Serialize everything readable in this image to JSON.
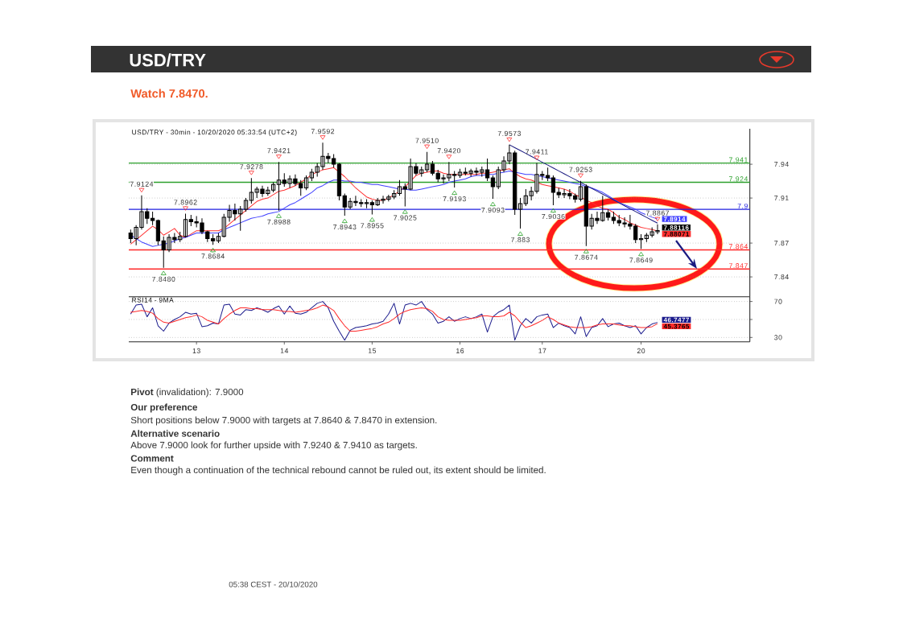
{
  "chart_data": [
    {
      "type": "candlestick",
      "title": "USD/TRY",
      "subtitle": "Watch 7.8470.",
      "color": "#000000",
      "categories": [
        null,
        null,
        null,
        null,
        null,
        null,
        null,
        null,
        null,
        null,
        null,
        null,
        null,
        null,
        null,
        null,
        null,
        null,
        null,
        null,
        null,
        null,
        null,
        null,
        null,
        null,
        null,
        null,
        null,
        null,
        null,
        null,
        null,
        null,
        null,
        null,
        null,
        null,
        null,
        null,
        null,
        null,
        null,
        null,
        null,
        null,
        null,
        null,
        null,
        null,
        null,
        null,
        null,
        null,
        null,
        null,
        null,
        null,
        null,
        null,
        null,
        null,
        null,
        null,
        null,
        null,
        null,
        null,
        null,
        null,
        null,
        null,
        null,
        null,
        null,
        null,
        null,
        null,
        null,
        null,
        null,
        null,
        null,
        null,
        null,
        null,
        null,
        null,
        null,
        null,
        null,
        null,
        null,
        null,
        null,
        null,
        null,
        null,
        null,
        null,
        null,
        null,
        null,
        null,
        null,
        null,
        null,
        null,
        null,
        null,
        null,
        null,
        null
      ],
      "ohlc": [
        [
          7.879,
          7.882,
          7.87,
          7.874
        ],
        [
          7.874,
          7.886,
          7.868,
          7.884
        ],
        [
          7.884,
          7.9124,
          7.882,
          7.898
        ],
        [
          7.898,
          7.901,
          7.887,
          7.892
        ],
        [
          7.892,
          7.898,
          7.886,
          7.89
        ],
        [
          7.89,
          7.891,
          7.868,
          7.872
        ],
        [
          7.872,
          7.876,
          7.848,
          7.864
        ],
        [
          7.864,
          7.878,
          7.862,
          7.875
        ],
        [
          7.875,
          7.879,
          7.87,
          7.873
        ],
        [
          7.873,
          7.88,
          7.871,
          7.876
        ],
        [
          7.876,
          7.8962,
          7.875,
          7.891
        ],
        [
          7.891,
          7.895,
          7.885,
          7.889
        ],
        [
          7.889,
          7.894,
          7.884,
          7.888
        ],
        [
          7.888,
          7.892,
          7.878,
          7.88
        ],
        [
          7.88,
          7.881,
          7.871,
          7.874
        ],
        [
          7.874,
          7.878,
          7.8684,
          7.872
        ],
        [
          7.872,
          7.879,
          7.87,
          7.876
        ],
        [
          7.876,
          7.896,
          7.875,
          7.893
        ],
        [
          7.893,
          7.904,
          7.889,
          7.899
        ],
        [
          7.899,
          7.905,
          7.89,
          7.896
        ],
        [
          7.896,
          7.903,
          7.881,
          7.9
        ],
        [
          7.9,
          7.91,
          7.898,
          7.908
        ],
        [
          7.908,
          7.9278,
          7.905,
          7.915
        ],
        [
          7.915,
          7.92,
          7.91,
          7.918
        ],
        [
          7.918,
          7.921,
          7.911,
          7.914
        ],
        [
          7.914,
          7.92,
          7.912,
          7.917
        ],
        [
          7.917,
          7.924,
          7.915,
          7.922
        ],
        [
          7.922,
          7.9421,
          7.8988,
          7.926
        ],
        [
          7.926,
          7.932,
          7.92,
          7.923
        ],
        [
          7.923,
          7.93,
          7.919,
          7.927
        ],
        [
          7.927,
          7.931,
          7.921,
          7.923
        ],
        [
          7.923,
          7.926,
          7.912,
          7.919
        ],
        [
          7.919,
          7.93,
          7.917,
          7.928
        ],
        [
          7.928,
          7.936,
          7.925,
          7.933
        ],
        [
          7.933,
          7.941,
          7.929,
          7.938
        ],
        [
          7.938,
          7.9592,
          7.935,
          7.947
        ],
        [
          7.947,
          7.95,
          7.941,
          7.945
        ],
        [
          7.945,
          7.949,
          7.937,
          7.94
        ],
        [
          7.94,
          7.941,
          7.908,
          7.912
        ],
        [
          7.912,
          7.914,
          7.8943,
          7.902
        ],
        [
          7.902,
          7.91,
          7.9,
          7.907
        ],
        [
          7.907,
          7.912,
          7.903,
          7.906
        ],
        [
          7.906,
          7.909,
          7.902,
          7.905
        ],
        [
          7.905,
          7.909,
          7.901,
          7.906
        ],
        [
          7.906,
          7.908,
          7.8955,
          7.904
        ],
        [
          7.904,
          7.91,
          7.903,
          7.908
        ],
        [
          7.908,
          7.912,
          7.905,
          7.909
        ],
        [
          7.909,
          7.913,
          7.907,
          7.911
        ],
        [
          7.911,
          7.917,
          7.909,
          7.914
        ],
        [
          7.914,
          7.926,
          7.912,
          7.92
        ],
        [
          7.92,
          7.923,
          7.9025,
          7.918
        ],
        [
          7.918,
          7.945,
          7.917,
          7.938
        ],
        [
          7.938,
          7.941,
          7.93,
          7.932
        ],
        [
          7.932,
          7.938,
          7.929,
          7.935
        ],
        [
          7.935,
          7.951,
          7.933,
          7.94
        ],
        [
          7.94,
          7.943,
          7.93,
          7.932
        ],
        [
          7.932,
          7.935,
          7.924,
          7.927
        ],
        [
          7.927,
          7.931,
          7.923,
          7.928
        ],
        [
          7.928,
          7.942,
          7.925,
          7.931
        ],
        [
          7.931,
          7.934,
          7.9193,
          7.93
        ],
        [
          7.93,
          7.936,
          7.928,
          7.933
        ],
        [
          7.933,
          7.937,
          7.93,
          7.932
        ],
        [
          7.932,
          7.936,
          7.929,
          7.934
        ],
        [
          7.934,
          7.937,
          7.93,
          7.933
        ],
        [
          7.933,
          7.938,
          7.929,
          7.935
        ],
        [
          7.935,
          7.945,
          7.925,
          7.928
        ],
        [
          7.928,
          7.93,
          7.9093,
          7.92
        ],
        [
          7.92,
          7.938,
          7.918,
          7.935
        ],
        [
          7.935,
          7.947,
          7.933,
          7.943
        ],
        [
          7.943,
          7.9573,
          7.94,
          7.95
        ],
        [
          7.95,
          7.952,
          7.895,
          7.9
        ],
        [
          7.9,
          7.91,
          7.883,
          7.905
        ],
        [
          7.905,
          7.918,
          7.903,
          7.912
        ],
        [
          7.912,
          7.92,
          7.908,
          7.916
        ],
        [
          7.916,
          7.9411,
          7.914,
          7.931
        ],
        [
          7.931,
          7.934,
          7.926,
          7.93
        ],
        [
          7.93,
          7.937,
          7.925,
          7.928
        ],
        [
          7.928,
          7.93,
          7.9036,
          7.915
        ],
        [
          7.915,
          7.919,
          7.91,
          7.913
        ],
        [
          7.913,
          7.918,
          7.91,
          7.914
        ],
        [
          7.914,
          7.918,
          7.909,
          7.912
        ],
        [
          7.912,
          7.914,
          7.906,
          7.909
        ],
        [
          7.909,
          7.9253,
          7.907,
          7.92
        ],
        [
          7.92,
          7.922,
          7.8674,
          7.885
        ],
        [
          7.885,
          7.896,
          7.882,
          7.892
        ],
        [
          7.892,
          7.898,
          7.887,
          7.89
        ],
        [
          7.89,
          7.912,
          7.889,
          7.897
        ],
        [
          7.897,
          7.9,
          7.89,
          7.893
        ],
        [
          7.893,
          7.898,
          7.887,
          7.89
        ],
        [
          7.89,
          7.895,
          7.885,
          7.888
        ],
        [
          7.888,
          7.893,
          7.884,
          7.887
        ],
        [
          7.887,
          7.895,
          7.882,
          7.885
        ],
        [
          7.885,
          7.887,
          7.87,
          7.873
        ],
        [
          7.873,
          7.878,
          7.8649,
          7.874
        ],
        [
          7.874,
          7.879,
          7.871,
          7.877
        ],
        [
          7.877,
          7.884,
          7.875,
          7.88
        ],
        [
          7.88,
          7.8867,
          7.878,
          7.88116
        ],
        null,
        null,
        null,
        null,
        null,
        null,
        null,
        null,
        null,
        null,
        null,
        null,
        null,
        null,
        null,
        null
      ],
      "value_labels": [
        null,
        null,
        null,
        null,
        null,
        null,
        null,
        null,
        null,
        null,
        null,
        null,
        null,
        null,
        null,
        null,
        null,
        null,
        null,
        null,
        null,
        null,
        null,
        null,
        null,
        null,
        null,
        null,
        null,
        null,
        null,
        null,
        null,
        null,
        null,
        null,
        null,
        null,
        null,
        null,
        null,
        null,
        null,
        null,
        null,
        null,
        null,
        null,
        null,
        null,
        null,
        null,
        null,
        null,
        null,
        null,
        null,
        null,
        null,
        null,
        null,
        null,
        null,
        null,
        null,
        null,
        null,
        null,
        null,
        null,
        null,
        null,
        null,
        null,
        null,
        null,
        null,
        null,
        null,
        null,
        null,
        null,
        null,
        null,
        null,
        null,
        null,
        null,
        null,
        null,
        null,
        null,
        null,
        null,
        null,
        null,
        "7.88116",
        null,
        null,
        null,
        null,
        null,
        null,
        null,
        null,
        null,
        null,
        null,
        null,
        null,
        null,
        null,
        null
      ],
      "series": [
        {
          "type": "line",
          "color": "#ff3030",
          "values": [
            7.869,
            7.873,
            7.877,
            7.881,
            7.885,
            7.882,
            7.877,
            7.88,
            7.883,
            7.877,
            7.875,
            7.878,
            7.881,
            7.881,
            7.881,
            7.881,
            7.881,
            7.883,
            7.887,
            7.891,
            7.895,
            7.899,
            7.903,
            7.907,
            7.909,
            7.91,
            7.913,
            7.916,
            7.917,
            7.919,
            7.921,
            7.924,
            7.927,
            7.931,
            7.933,
            7.935,
            7.936,
            7.937,
            7.933,
            7.929,
            7.924,
            7.919,
            7.915,
            7.911,
            7.909,
            7.908,
            7.908,
            7.91,
            7.913,
            7.916,
            7.92,
            7.925,
            7.93,
            7.932,
            7.933,
            7.934,
            7.934,
            7.932,
            7.931,
            7.931,
            7.931,
            7.931,
            7.931,
            7.931,
            7.932,
            7.932,
            7.933,
            7.934,
            7.935,
            7.936,
            7.932,
            7.929,
            7.927,
            7.926,
            7.924,
            7.922,
            7.921,
            7.92,
            7.919,
            7.918,
            7.916,
            7.913,
            7.911,
            7.908,
            7.906,
            7.903,
            7.901,
            7.9,
            7.897,
            7.893,
            7.891,
            7.888,
            7.886,
            7.884,
            7.883,
            7.882,
            7.88071,
            null,
            null,
            null,
            null,
            null,
            null,
            null,
            null,
            null,
            null,
            null,
            null,
            null,
            null,
            null,
            null
          ],
          "value_labels": [
            null,
            null,
            null,
            null,
            null,
            null,
            null,
            null,
            null,
            null,
            null,
            null,
            null,
            null,
            null,
            null,
            null,
            null,
            null,
            null,
            null,
            null,
            null,
            null,
            null,
            null,
            null,
            null,
            null,
            null,
            null,
            null,
            null,
            null,
            null,
            null,
            null,
            null,
            null,
            null,
            null,
            null,
            null,
            null,
            null,
            null,
            null,
            null,
            null,
            null,
            null,
            null,
            null,
            null,
            null,
            null,
            null,
            null,
            null,
            null,
            null,
            null,
            null,
            null,
            null,
            null,
            null,
            null,
            null,
            null,
            null,
            null,
            null,
            null,
            null,
            null,
            null,
            null,
            null,
            null,
            null,
            null,
            null,
            null,
            null,
            null,
            null,
            null,
            null,
            null,
            null,
            null,
            null,
            null,
            null,
            null,
            "7.88071",
            null,
            null,
            null,
            null,
            null,
            null,
            null,
            null,
            null,
            null,
            null,
            null,
            null,
            null,
            null,
            null
          ]
        },
        {
          "type": "line",
          "color": "#4040ff",
          "values": [
            7.877,
            7.874,
            7.871,
            7.869,
            7.867,
            7.868,
            7.869,
            7.87,
            7.872,
            7.874,
            7.875,
            7.877,
            7.879,
            7.879,
            7.879,
            7.879,
            7.879,
            7.882,
            7.884,
            7.886,
            7.888,
            7.89,
            7.892,
            7.893,
            7.894,
            7.896,
            7.897,
            7.898,
            7.901,
            7.904,
            7.906,
            7.909,
            7.912,
            7.915,
            7.919,
            7.921,
            7.924,
            7.926,
            7.926,
            7.925,
            7.925,
            7.924,
            7.924,
            7.923,
            7.922,
            7.922,
            7.921,
            7.92,
            7.919,
            7.918,
            7.918,
            7.917,
            7.917,
            7.918,
            7.919,
            7.92,
            7.921,
            7.922,
            7.924,
            7.925,
            7.926,
            7.927,
            7.929,
            7.93,
            7.93,
            7.931,
            7.931,
            7.932,
            7.933,
            7.934,
            7.933,
            7.932,
            7.931,
            7.931,
            7.93,
            7.929,
            7.928,
            7.927,
            7.926,
            7.925,
            7.924,
            7.923,
            7.922,
            7.92,
            7.919,
            7.917,
            7.915,
            7.912,
            7.909,
            7.906,
            7.904,
            7.902,
            7.9,
            7.897,
            7.895,
            7.893,
            7.8914,
            null,
            null,
            null,
            null,
            null,
            null,
            null,
            null,
            null,
            null,
            null,
            null,
            null,
            null,
            null,
            null
          ],
          "value_labels": [
            null,
            null,
            null,
            null,
            null,
            null,
            null,
            null,
            null,
            null,
            null,
            null,
            null,
            null,
            null,
            null,
            null,
            null,
            null,
            null,
            null,
            null,
            null,
            null,
            null,
            null,
            null,
            null,
            null,
            null,
            null,
            null,
            null,
            null,
            null,
            null,
            null,
            null,
            null,
            null,
            null,
            null,
            null,
            null,
            null,
            null,
            null,
            null,
            null,
            null,
            null,
            null,
            null,
            null,
            null,
            null,
            null,
            null,
            null,
            null,
            null,
            null,
            null,
            null,
            null,
            null,
            null,
            null,
            null,
            null,
            null,
            null,
            null,
            null,
            null,
            null,
            null,
            null,
            null,
            null,
            null,
            null,
            null,
            null,
            null,
            null,
            null,
            null,
            null,
            null,
            null,
            null,
            null,
            null,
            null,
            null,
            "7.8914",
            null,
            null,
            null,
            null,
            null,
            null,
            null,
            null,
            null,
            null,
            null,
            null,
            null,
            null,
            null,
            null
          ]
        },
        {
          "type": "line",
          "color": "#1a1a80",
          "values": [
            null,
            null,
            null,
            null,
            null,
            null,
            null,
            null,
            null,
            null,
            null,
            null,
            null,
            null,
            null,
            null,
            null,
            null,
            null,
            null,
            null,
            null,
            null,
            null,
            null,
            null,
            null,
            null,
            null,
            null,
            null,
            null,
            null,
            null,
            null,
            null,
            null,
            null,
            null,
            null,
            null,
            null,
            null,
            null,
            null,
            null,
            null,
            null,
            null,
            null,
            null,
            null,
            null,
            null,
            null,
            null,
            null,
            null,
            null,
            null,
            null,
            null,
            null,
            null,
            null,
            null,
            null,
            null,
            null,
            7.9573,
            7.9547,
            7.9522,
            7.9496,
            7.947,
            7.9444,
            7.9418,
            7.9393,
            7.9367,
            7.9341,
            7.9315,
            7.9289,
            7.9264,
            7.9238,
            7.9212,
            7.9186,
            7.916,
            7.9135,
            7.9109,
            7.9083,
            7.9057,
            7.9031,
            7.9006,
            7.898,
            7.8954,
            7.8928,
            7.8902,
            7.8877,
            null,
            null,
            null,
            null,
            null,
            null,
            null,
            null,
            null,
            null,
            null,
            null,
            null,
            null,
            null,
            null
          ]
        }
      ],
      "ylim": [
        7.8224,
        7.9715
      ],
      "yticks": [
        7.94,
        7.91,
        7.87,
        7.84
      ],
      "grid": "y",
      "ref_lines": [
        {
          "axis": "y",
          "value": 7.941,
          "label": "7.941",
          "color": "#2ca02c"
        },
        {
          "axis": "y",
          "value": 7.924,
          "label": "7.924",
          "color": "#2ca02c"
        },
        {
          "axis": "y",
          "value": 7.9,
          "label": "7.9",
          "color": "#2020e0"
        },
        {
          "axis": "y",
          "value": 7.864,
          "label": "7.864",
          "color": "#ff2a2a"
        },
        {
          "axis": "y",
          "value": 7.847,
          "label": "7.847",
          "color": "#ff2a2a"
        }
      ],
      "annotations": [
        "USD/TRY - 30min - 10/20/2020 05:33:54 (UTC+2)",
        {
          "text": "7.9124",
          "y": 7.9124
        },
        {
          "text": "7.8480",
          "y": 7.848
        },
        {
          "text": "7.8962",
          "y": 7.8962
        },
        {
          "text": "7.8684",
          "y": 7.8684
        },
        {
          "text": "7.9278",
          "y": 7.9278
        },
        {
          "text": "7.9421",
          "y": 7.9421
        },
        {
          "text": "7.8988",
          "y": 7.8988
        },
        {
          "text": "7.9592",
          "y": 7.9592
        },
        {
          "text": "7.8943",
          "y": 7.8943
        },
        {
          "text": "7.8955",
          "y": 7.8955
        },
        {
          "text": "7.9025",
          "y": 7.9025
        },
        {
          "text": "7.9510",
          "y": 7.951
        },
        {
          "text": "7.9420",
          "y": 7.942
        },
        {
          "text": "7.9193",
          "y": 7.9193
        },
        {
          "text": "7.9093",
          "y": 7.9093
        },
        {
          "text": "7.9573",
          "y": 7.9573
        },
        {
          "text": "7.883",
          "y": 7.883
        },
        {
          "text": "7.9411",
          "y": 7.9411
        },
        {
          "text": "7.9036",
          "y": 7.9036
        },
        {
          "text": "7.9253",
          "y": 7.9253
        },
        {
          "text": "7.8674",
          "y": 7.8674
        },
        {
          "text": "7.8649",
          "y": 7.8649
        },
        {
          "text": "7.8867",
          "y": 7.8867
        }
      ]
    },
    {
      "type": "line",
      "title": "RSI14 - 9MA",
      "categories": [
        null,
        null,
        null,
        null,
        null,
        null,
        null,
        null,
        null,
        null,
        null,
        null,
        "13",
        null,
        null,
        null,
        null,
        null,
        null,
        null,
        null,
        null,
        null,
        null,
        null,
        null,
        null,
        null,
        "14",
        null,
        null,
        null,
        null,
        null,
        null,
        null,
        null,
        null,
        null,
        null,
        null,
        null,
        null,
        null,
        "15",
        null,
        null,
        null,
        null,
        null,
        null,
        null,
        null,
        null,
        null,
        null,
        null,
        null,
        null,
        null,
        "16",
        null,
        null,
        null,
        null,
        null,
        null,
        null,
        null,
        null,
        null,
        null,
        null,
        null,
        null,
        "17",
        null,
        null,
        null,
        null,
        null,
        null,
        null,
        null,
        null,
        null,
        null,
        null,
        null,
        null,
        null,
        null,
        null,
        "20",
        null,
        null,
        null,
        null,
        null,
        null,
        null,
        null,
        null,
        null,
        null,
        null,
        null,
        null,
        null,
        null,
        null,
        null,
        null
      ],
      "series": [
        {
          "color": "#1a1a8c",
          "values": [
            56,
            66,
            67,
            53,
            63,
            43,
            37,
            46,
            50,
            53,
            58,
            56,
            57,
            42,
            43,
            46,
            45,
            66,
            67,
            56,
            55,
            61,
            60,
            63,
            61,
            58,
            62,
            65,
            56,
            65,
            57,
            56,
            58,
            63,
            68,
            70,
            63,
            48,
            37,
            27,
            38,
            41,
            42,
            43,
            45,
            46,
            48,
            56,
            68,
            45,
            66,
            68,
            66,
            70,
            61,
            56,
            46,
            48,
            53,
            48,
            51,
            53,
            51,
            53,
            56,
            36,
            53,
            58,
            61,
            66,
            27,
            43,
            51,
            46,
            53,
            55,
            56,
            41,
            46,
            43,
            41,
            34,
            53,
            31,
            41,
            43,
            51,
            42,
            45,
            46,
            43,
            41,
            43,
            34,
            41,
            45,
            46.7477,
            null,
            null,
            null,
            null,
            null,
            null,
            null,
            null,
            null,
            null,
            null,
            null,
            null,
            null,
            null,
            null
          ],
          "value_labels": [
            null,
            null,
            null,
            null,
            null,
            null,
            null,
            null,
            null,
            null,
            null,
            null,
            null,
            null,
            null,
            null,
            null,
            null,
            null,
            null,
            null,
            null,
            null,
            null,
            null,
            null,
            null,
            null,
            null,
            null,
            null,
            null,
            null,
            null,
            null,
            null,
            null,
            null,
            null,
            null,
            null,
            null,
            null,
            null,
            null,
            null,
            null,
            null,
            null,
            null,
            null,
            null,
            null,
            null,
            null,
            null,
            null,
            null,
            null,
            null,
            null,
            null,
            null,
            null,
            null,
            null,
            null,
            null,
            null,
            null,
            null,
            null,
            null,
            null,
            null,
            null,
            null,
            null,
            null,
            null,
            null,
            null,
            null,
            null,
            null,
            null,
            null,
            null,
            null,
            null,
            null,
            null,
            null,
            null,
            null,
            null,
            "46.7477",
            null,
            null,
            null,
            null,
            null,
            null,
            null,
            null,
            null,
            null,
            null,
            null,
            null,
            null,
            null,
            null
          ]
        },
        {
          "color": "#ff2a2a",
          "values": [
            58,
            59,
            60,
            59,
            57,
            51,
            47,
            46,
            48,
            50,
            52,
            53,
            55,
            53,
            49,
            47,
            45,
            51,
            56,
            60,
            63,
            63,
            62,
            62,
            61,
            61,
            61,
            60,
            59,
            59,
            58,
            59,
            60,
            61,
            63,
            66,
            64,
            60,
            51,
            43,
            37,
            37,
            38,
            39,
            40,
            42,
            45,
            47,
            51,
            56,
            59,
            61,
            62,
            63,
            62,
            59,
            53,
            50,
            49,
            49,
            49,
            50,
            51,
            52,
            54,
            54,
            53,
            53,
            54,
            58,
            54,
            47,
            41,
            43,
            46,
            49,
            53,
            50,
            46,
            44,
            42,
            41,
            41,
            41,
            42,
            44,
            45,
            45,
            45,
            44,
            43,
            43,
            42,
            41,
            41,
            42,
            45.3765,
            null,
            null,
            null,
            null,
            null,
            null,
            null,
            null,
            null,
            null,
            null,
            null,
            null,
            null,
            null,
            null
          ],
          "value_labels": [
            null,
            null,
            null,
            null,
            null,
            null,
            null,
            null,
            null,
            null,
            null,
            null,
            null,
            null,
            null,
            null,
            null,
            null,
            null,
            null,
            null,
            null,
            null,
            null,
            null,
            null,
            null,
            null,
            null,
            null,
            null,
            null,
            null,
            null,
            null,
            null,
            null,
            null,
            null,
            null,
            null,
            null,
            null,
            null,
            null,
            null,
            null,
            null,
            null,
            null,
            null,
            null,
            null,
            null,
            null,
            null,
            null,
            null,
            null,
            null,
            null,
            null,
            null,
            null,
            null,
            null,
            null,
            null,
            null,
            null,
            null,
            null,
            null,
            null,
            null,
            null,
            null,
            null,
            null,
            null,
            null,
            null,
            null,
            null,
            null,
            null,
            null,
            null,
            null,
            null,
            null,
            null,
            null,
            null,
            null,
            null,
            "45.3765",
            null,
            null,
            null,
            null,
            null,
            null,
            null,
            null,
            null,
            null,
            null,
            null,
            null,
            null,
            null,
            null
          ]
        }
      ],
      "ylim": [
        25.1,
        75.3
      ],
      "yticks": [
        30,
        {
          "value": 50,
          "label": null
        },
        70
      ],
      "grid": "y"
    },
    {
      "type": "other",
      "annotations": [
        "**Pivot** (invalidation): 7.9000",
        "Our preference",
        "Short positions below 7.9000 with targets at 7.8640 & 7.8470 in extension.",
        "Alternative scenario",
        "Above 7.9000 look for further upside with 7.9240 & 7.9410 as targets.",
        "Comment",
        "Even though a continuation of the technical rebound cannot be ruled out, its extent should be limited.",
        "05:38 CEST - 20/10/2020"
      ]
    }
  ]
}
